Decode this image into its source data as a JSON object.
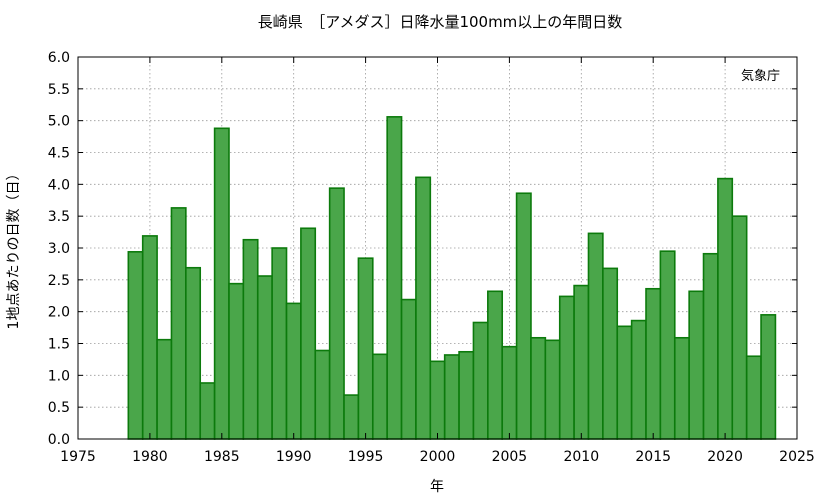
{
  "chart_data": {
    "type": "bar",
    "title": "長崎県　［アメダス］日降水量100mm以上の年間日数",
    "xlabel": "年",
    "ylabel": "1地点あたりの日数（日）",
    "annotation": "気象庁",
    "xlim": [
      1975,
      2025
    ],
    "ylim": [
      0,
      6
    ],
    "x_ticks": [
      "1975",
      "1980",
      "1985",
      "1990",
      "1995",
      "2000",
      "2005",
      "2010",
      "2015",
      "2020",
      "2025"
    ],
    "y_ticks": [
      "0.0",
      "0.5",
      "1.0",
      "1.5",
      "2.0",
      "2.5",
      "3.0",
      "3.5",
      "4.0",
      "4.5",
      "5.0",
      "5.5",
      "6.0"
    ],
    "grid": true,
    "bar_color": "#4aa64a",
    "bar_edge_color": "#0c7a0c",
    "x": [
      1979,
      1980,
      1981,
      1982,
      1983,
      1984,
      1985,
      1986,
      1987,
      1988,
      1989,
      1990,
      1991,
      1992,
      1993,
      1994,
      1995,
      1996,
      1997,
      1998,
      1999,
      2000,
      2001,
      2002,
      2003,
      2004,
      2005,
      2006,
      2007,
      2008,
      2009,
      2010,
      2011,
      2012,
      2013,
      2014,
      2015,
      2016,
      2017,
      2018,
      2019,
      2020,
      2021,
      2022,
      2023
    ],
    "values": [
      2.94,
      3.19,
      1.56,
      3.63,
      2.69,
      0.88,
      4.88,
      2.44,
      3.13,
      2.56,
      3.0,
      2.13,
      3.31,
      1.39,
      3.94,
      0.69,
      2.84,
      1.33,
      5.06,
      2.19,
      4.11,
      1.22,
      1.32,
      1.37,
      1.83,
      2.32,
      1.45,
      3.86,
      1.59,
      1.55,
      2.24,
      2.41,
      3.23,
      2.68,
      1.77,
      1.86,
      2.36,
      2.95,
      1.59,
      2.32,
      2.91,
      4.09,
      3.5,
      1.3,
      1.95
    ]
  }
}
